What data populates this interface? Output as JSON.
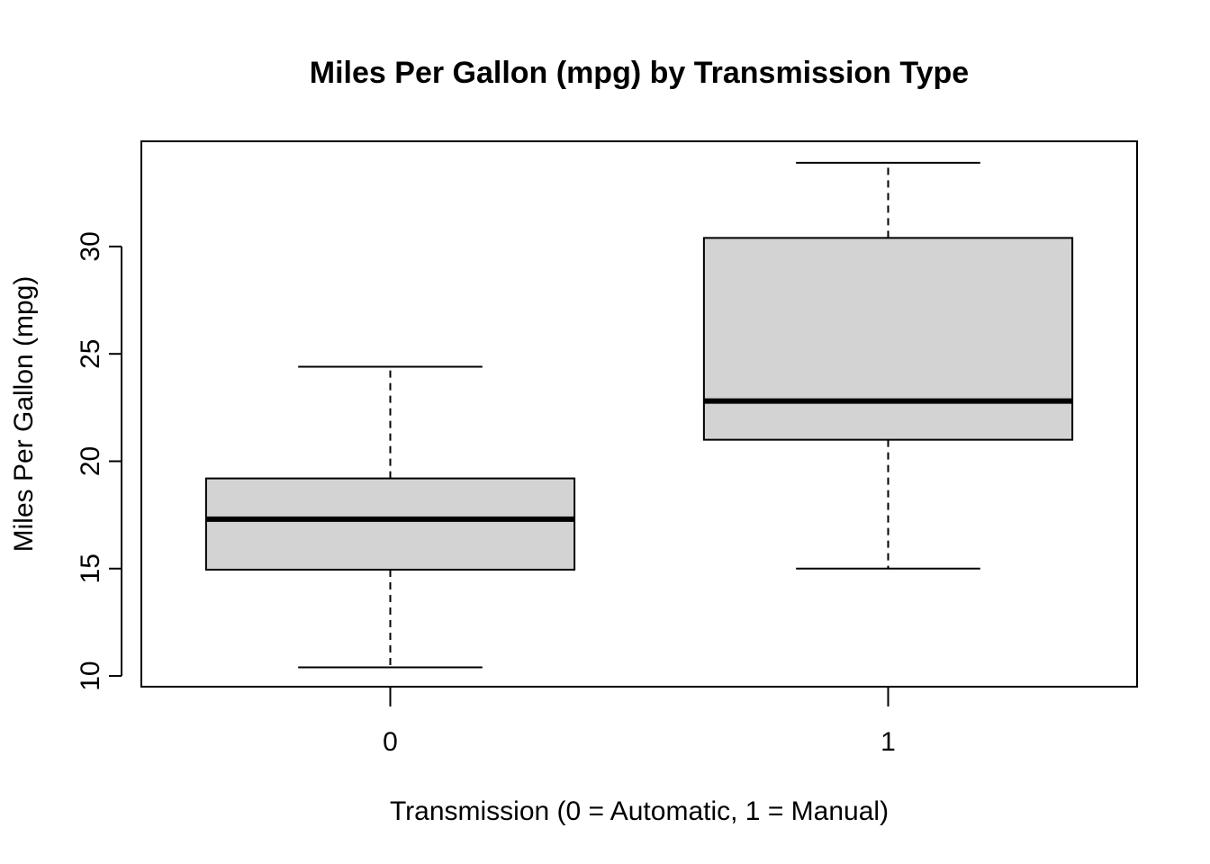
{
  "chart_data": {
    "type": "box",
    "title": "Miles Per Gallon (mpg) by Transmission Type",
    "xlabel": "Transmission (0 = Automatic, 1 = Manual)",
    "ylabel": "Miles Per Gallon (mpg)",
    "categories": [
      "0",
      "1"
    ],
    "boxes": [
      {
        "category": "0",
        "whisker_low": 10.4,
        "q1": 14.95,
        "median": 17.3,
        "q3": 19.2,
        "whisker_high": 24.4
      },
      {
        "category": "1",
        "whisker_low": 15.0,
        "q1": 21.0,
        "median": 22.8,
        "q3": 30.4,
        "whisker_high": 33.9
      }
    ],
    "ylim": [
      9.5,
      34.9
    ],
    "yticks": [
      10,
      15,
      20,
      25,
      30
    ],
    "grid": false,
    "box_fill": "#d3d3d3",
    "line_color": "#000000"
  }
}
